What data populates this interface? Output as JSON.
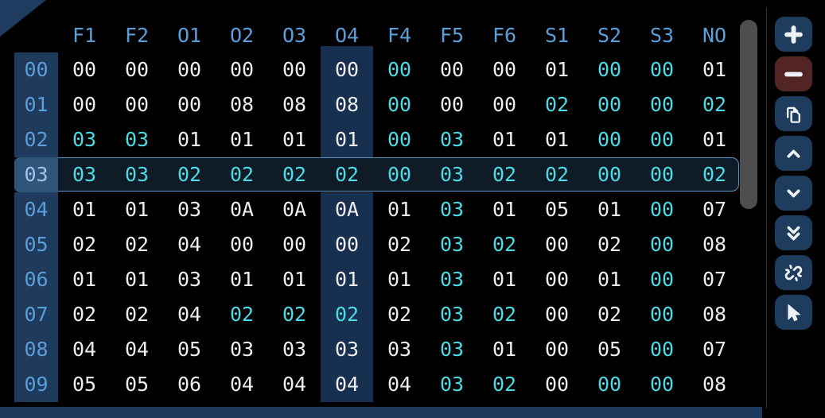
{
  "table": {
    "columns": [
      "F1",
      "F2",
      "O1",
      "O2",
      "O3",
      "O4",
      "F4",
      "F5",
      "F6",
      "S1",
      "S2",
      "S3",
      "NO"
    ],
    "highlighted_column": "O4",
    "selected_row_label": "03",
    "rows": [
      {
        "label": "00",
        "values": [
          "00",
          "00",
          "00",
          "00",
          "00",
          "00",
          "00",
          "00",
          "00",
          "01",
          "00",
          "00",
          "01"
        ],
        "colors": [
          "w",
          "w",
          "w",
          "w",
          "w",
          "w",
          "c",
          "w",
          "w",
          "w",
          "c",
          "c",
          "w"
        ]
      },
      {
        "label": "01",
        "values": [
          "00",
          "00",
          "00",
          "08",
          "08",
          "08",
          "00",
          "00",
          "00",
          "02",
          "00",
          "00",
          "02"
        ],
        "colors": [
          "w",
          "w",
          "w",
          "w",
          "w",
          "w",
          "c",
          "w",
          "w",
          "c",
          "c",
          "c",
          "c"
        ]
      },
      {
        "label": "02",
        "values": [
          "03",
          "03",
          "01",
          "01",
          "01",
          "01",
          "00",
          "03",
          "01",
          "01",
          "00",
          "00",
          "01"
        ],
        "colors": [
          "c",
          "c",
          "w",
          "w",
          "w",
          "w",
          "c",
          "c",
          "w",
          "w",
          "c",
          "c",
          "w"
        ]
      },
      {
        "label": "03",
        "values": [
          "03",
          "03",
          "02",
          "02",
          "02",
          "02",
          "00",
          "03",
          "02",
          "02",
          "00",
          "00",
          "02"
        ],
        "colors": [
          "c",
          "c",
          "c",
          "c",
          "c",
          "c",
          "c",
          "c",
          "c",
          "c",
          "c",
          "c",
          "c"
        ]
      },
      {
        "label": "04",
        "values": [
          "01",
          "01",
          "03",
          "0A",
          "0A",
          "0A",
          "01",
          "03",
          "01",
          "05",
          "01",
          "00",
          "07"
        ],
        "colors": [
          "w",
          "w",
          "w",
          "w",
          "w",
          "w",
          "w",
          "c",
          "w",
          "w",
          "w",
          "c",
          "w"
        ]
      },
      {
        "label": "05",
        "values": [
          "02",
          "02",
          "04",
          "00",
          "00",
          "00",
          "02",
          "03",
          "02",
          "00",
          "02",
          "00",
          "08"
        ],
        "colors": [
          "w",
          "w",
          "w",
          "w",
          "w",
          "w",
          "w",
          "c",
          "c",
          "w",
          "w",
          "c",
          "w"
        ]
      },
      {
        "label": "06",
        "values": [
          "01",
          "01",
          "03",
          "01",
          "01",
          "01",
          "01",
          "03",
          "01",
          "00",
          "01",
          "00",
          "07"
        ],
        "colors": [
          "w",
          "w",
          "w",
          "w",
          "w",
          "w",
          "w",
          "c",
          "w",
          "w",
          "w",
          "c",
          "w"
        ]
      },
      {
        "label": "07",
        "values": [
          "02",
          "02",
          "04",
          "02",
          "02",
          "02",
          "02",
          "03",
          "02",
          "00",
          "02",
          "00",
          "08"
        ],
        "colors": [
          "w",
          "w",
          "w",
          "c",
          "c",
          "c",
          "w",
          "c",
          "c",
          "w",
          "w",
          "c",
          "w"
        ]
      },
      {
        "label": "08",
        "values": [
          "04",
          "04",
          "05",
          "03",
          "03",
          "03",
          "03",
          "03",
          "01",
          "00",
          "05",
          "00",
          "07"
        ],
        "colors": [
          "w",
          "w",
          "w",
          "w",
          "w",
          "w",
          "w",
          "c",
          "w",
          "w",
          "w",
          "c",
          "w"
        ]
      },
      {
        "label": "09",
        "values": [
          "05",
          "05",
          "06",
          "04",
          "04",
          "04",
          "04",
          "03",
          "02",
          "00",
          "00",
          "00",
          "08"
        ],
        "colors": [
          "w",
          "w",
          "w",
          "w",
          "w",
          "w",
          "w",
          "c",
          "c",
          "w",
          "c",
          "c",
          "w"
        ]
      }
    ]
  },
  "toolbar": {
    "buttons": [
      {
        "name": "add",
        "icon": "plus-icon",
        "color": "#1d3c5e"
      },
      {
        "name": "remove",
        "icon": "minus-icon",
        "color": "#532424"
      },
      {
        "name": "copy",
        "icon": "copy-icon",
        "color": "#1d3c5e"
      },
      {
        "name": "move-up",
        "icon": "chevron-up-icon",
        "color": "#1d3c5e"
      },
      {
        "name": "move-down",
        "icon": "chevron-down-icon",
        "color": "#1d3c5e"
      },
      {
        "name": "move-to-bottom",
        "icon": "double-chevron-down-icon",
        "color": "#1d3c5e"
      },
      {
        "name": "unlink",
        "icon": "broken-link-icon",
        "color": "#1d3c5e"
      },
      {
        "name": "pointer",
        "icon": "cursor-icon",
        "color": "#1d3c5e"
      }
    ]
  },
  "colors": {
    "background": "#000000",
    "accent_navy": "#1d3c5e",
    "danger_red": "#532424",
    "header_blue": "#5c9fd8",
    "value_white": "#ededed",
    "value_cyan": "#4cdbe4",
    "row_label_bg": "#1e3a5c",
    "column_highlight_bg": "#18304f",
    "selection_border": "#5e93c8",
    "selected_label_bg": "#2f5578",
    "scrollbar_thumb": "#4e4e4e"
  }
}
